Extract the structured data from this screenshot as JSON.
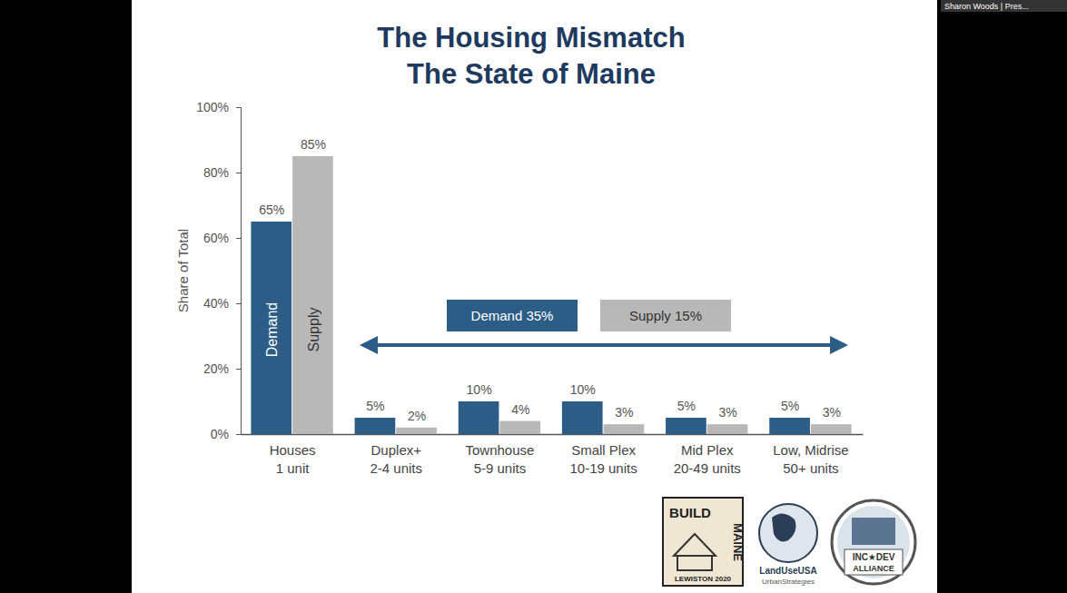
{
  "chart_data": {
    "type": "bar",
    "title": "The Housing Mismatch",
    "subtitle": "The State of Maine",
    "y_label": "Share of Total",
    "categories": [
      "Houses\n1 unit",
      "Duplex+\n2-4 units",
      "Townhouse\n5-9 units",
      "Small Plex\n10-19 units",
      "Mid Plex\n20-49 units",
      "Low, Midrise\n50+ units"
    ],
    "series": [
      {
        "name": "Demand",
        "color": "#2b5d86",
        "values": [
          65,
          5,
          10,
          10,
          5,
          5
        ],
        "value_labels": [
          "65%",
          "5%",
          "10%",
          "10%",
          "5%",
          "5%"
        ]
      },
      {
        "name": "Supply",
        "color": "#b8b8b8",
        "values": [
          85,
          2,
          4,
          3,
          3,
          3
        ],
        "value_labels": [
          "85%",
          "2%",
          "4%",
          "3%",
          "3%",
          "3%"
        ]
      }
    ],
    "ylim": [
      0,
      100
    ],
    "yticks": [
      {
        "value": 0,
        "label": "0%"
      },
      {
        "value": 20,
        "label": "20%"
      },
      {
        "value": 40,
        "label": "40%"
      },
      {
        "value": 60,
        "label": "60%"
      },
      {
        "value": 80,
        "label": "80%"
      },
      {
        "value": 100,
        "label": "100%"
      }
    ],
    "grid": false,
    "data_labels": true,
    "annotations": [
      "Demand 35%",
      "Supply 15%"
    ]
  },
  "logos": [
    {
      "lines": [
        "BUILD",
        "MAINE",
        "LEWISTON 2020"
      ]
    },
    {
      "lines": [
        "LandUseUSA",
        "UrbanStrategies"
      ]
    },
    {
      "lines": [
        "INC★DEV",
        "ALLIANCE"
      ]
    }
  ],
  "presenter": "Sharon Woods | Pres..."
}
